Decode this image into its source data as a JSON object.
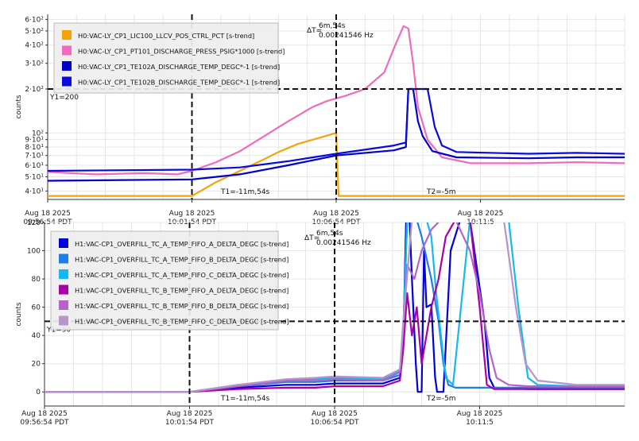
{
  "colors": {
    "grid": "#e6e6e6",
    "axis": "#333333",
    "cursor": "#111111",
    "legend_bg": "#eeeeee",
    "legend_border": "#bbbbbb"
  },
  "chart_data": [
    {
      "type": "line",
      "ylabel": "counts",
      "yscale": "log",
      "ylim": [
        35,
        650
      ],
      "xlim": [
        0,
        1200
      ],
      "y_ticks": [
        {
          "value": 40,
          "label": "4·10¹"
        },
        {
          "value": 50,
          "label": "5·10¹"
        },
        {
          "value": 60,
          "label": "6·10¹"
        },
        {
          "value": 70,
          "label": "7·10¹"
        },
        {
          "value": 80,
          "label": "8·10¹"
        },
        {
          "value": 90,
          "label": "9·10¹"
        },
        {
          "value": 100,
          "label": "10²"
        },
        {
          "value": 200,
          "label": "2·10²"
        },
        {
          "value": 300,
          "label": "3·10²"
        },
        {
          "value": 400,
          "label": "4·10²"
        },
        {
          "value": 500,
          "label": "5·10²"
        },
        {
          "value": 600,
          "label": "6·10²"
        }
      ],
      "x_ticks": [
        {
          "value": 0,
          "line1": "Aug 18 2025",
          "line2": "09:56:54 PDT"
        },
        {
          "value": 300,
          "line1": "Aug 18 2025",
          "line2": "10:01:54 PDT"
        },
        {
          "value": 600,
          "line1": "Aug 18 2025",
          "line2": "10:06:54 PDT"
        },
        {
          "value": 900,
          "line1": "Aug 18 2025",
          "line2": "10:11:5"
        }
      ],
      "cursors": {
        "t1": {
          "x": 300,
          "label": "T1=-11m,54s"
        },
        "t2": {
          "x": 600,
          "label": "T2=-5m"
        },
        "y1": {
          "y": 200,
          "label": "Y1=200"
        },
        "delta_line1": "ΔT=",
        "delta_line2": "6m,54s",
        "delta_line3": "0.00241546 Hz"
      },
      "series": [
        {
          "name": "H0:VAC-LY_CP1_LIC100_LLCV_POS_CTRL_PCT [s-trend]",
          "color": "#f5a30a",
          "points": [
            [
              0,
              37
            ],
            [
              300,
              37
            ],
            [
              350,
              46
            ],
            [
              400,
              55
            ],
            [
              450,
              66
            ],
            [
              480,
              74
            ],
            [
              520,
              84
            ],
            [
              600,
              100
            ],
            [
              605,
              37
            ],
            [
              1200,
              37
            ]
          ]
        },
        {
          "name": "H0:VAC-LY_CP1_PT101_DISCHARGE_PRESS_PSIG*1000 [s-trend]",
          "color": "#f06bbd",
          "points": [
            [
              0,
              54
            ],
            [
              100,
              52
            ],
            [
              200,
              53
            ],
            [
              270,
              52
            ],
            [
              300,
              55
            ],
            [
              350,
              63
            ],
            [
              400,
              75
            ],
            [
              450,
              95
            ],
            [
              500,
              120
            ],
            [
              550,
              150
            ],
            [
              580,
              165
            ],
            [
              620,
              180
            ],
            [
              660,
              200
            ],
            [
              700,
              260
            ],
            [
              720,
              380
            ],
            [
              740,
              540
            ],
            [
              750,
              520
            ],
            [
              760,
              300
            ],
            [
              770,
              150
            ],
            [
              790,
              90
            ],
            [
              820,
              68
            ],
            [
              880,
              62
            ],
            [
              1000,
              62
            ],
            [
              1100,
              63
            ],
            [
              1200,
              62
            ]
          ]
        },
        {
          "name": "H0:VAC-LY_CP1_TE102A_DISCHARGE_TEMP_DEGC*-1 [s-trend]",
          "color": "#0000cc",
          "points": [
            [
              0,
              47
            ],
            [
              300,
              48
            ],
            [
              400,
              52
            ],
            [
              500,
              60
            ],
            [
              600,
              70
            ],
            [
              720,
              76
            ],
            [
              745,
              80
            ],
            [
              750,
              200
            ],
            [
              760,
              200
            ],
            [
              770,
              120
            ],
            [
              780,
              95
            ],
            [
              800,
              75
            ],
            [
              850,
              68
            ],
            [
              1000,
              67
            ],
            [
              1100,
              68
            ],
            [
              1200,
              68
            ]
          ]
        },
        {
          "name": "H0:VAC-LY_CP1_TE102B_DISCHARGE_TEMP_DEGC*-1 [s-trend]",
          "color": "#0a0adc",
          "points": [
            [
              0,
              55
            ],
            [
              300,
              56
            ],
            [
              400,
              58
            ],
            [
              500,
              64
            ],
            [
              600,
              72
            ],
            [
              720,
              82
            ],
            [
              745,
              86
            ],
            [
              750,
              200
            ],
            [
              790,
              200
            ],
            [
              805,
              110
            ],
            [
              820,
              82
            ],
            [
              850,
              74
            ],
            [
              1000,
              72
            ],
            [
              1100,
              73
            ],
            [
              1200,
              72
            ]
          ]
        }
      ]
    },
    {
      "type": "line",
      "ylabel": "counts",
      "yscale": "linear",
      "ylim": [
        -10,
        120
      ],
      "xlim": [
        0,
        1200
      ],
      "y_ticks": [
        {
          "value": 0,
          "label": "0"
        },
        {
          "value": 20,
          "label": "20"
        },
        {
          "value": 40,
          "label": "40"
        },
        {
          "value": 60,
          "label": "60"
        },
        {
          "value": 80,
          "label": "80"
        },
        {
          "value": 100,
          "label": "100"
        },
        {
          "value": 120,
          "label": "120"
        }
      ],
      "x_ticks": [
        {
          "value": 0,
          "line1": "Aug 18 2025",
          "line2": "09:56:54 PDT"
        },
        {
          "value": 300,
          "line1": "Aug 18 2025",
          "line2": "10:01:54 PDT"
        },
        {
          "value": 600,
          "line1": "Aug 18 2025",
          "line2": "10:06:54 PDT"
        },
        {
          "value": 900,
          "line1": "Aug 18 2025",
          "line2": "10:11:5"
        }
      ],
      "cursors": {
        "t1": {
          "x": 300,
          "label": "T1=-11m,54s"
        },
        "t2": {
          "x": 600,
          "label": "T2=-5m"
        },
        "y1": {
          "y": 50,
          "label": "Y1=50"
        },
        "delta_line1": "ΔT=",
        "delta_line2": "6m,54s",
        "delta_line3": "0.00241546 Hz"
      },
      "series": [
        {
          "name": "H1:VAC-CP1_OVERFILL_TC_A_TEMP_FIFO_A_DELTA_DEGC [s-trend]",
          "color": "#0000dd",
          "points": [
            [
              0,
              0
            ],
            [
              300,
              0
            ],
            [
              400,
              3
            ],
            [
              500,
              5
            ],
            [
              560,
              5
            ],
            [
              600,
              6
            ],
            [
              700,
              6
            ],
            [
              735,
              10
            ],
            [
              742,
              35
            ],
            [
              748,
              122
            ],
            [
              755,
              122
            ],
            [
              760,
              80
            ],
            [
              768,
              20
            ],
            [
              772,
              0
            ],
            [
              780,
              0
            ],
            [
              785,
              100
            ],
            [
              790,
              60
            ],
            [
              800,
              62
            ],
            [
              808,
              10
            ],
            [
              812,
              0
            ],
            [
              825,
              0
            ],
            [
              840,
              100
            ],
            [
              860,
              122
            ],
            [
              880,
              122
            ],
            [
              910,
              50
            ],
            [
              920,
              10
            ],
            [
              930,
              3
            ],
            [
              1000,
              2
            ],
            [
              1100,
              2
            ],
            [
              1200,
              2
            ]
          ]
        },
        {
          "name": "H1:VAC-CP1_OVERFILL_TC_A_TEMP_FIFO_B_DELTA_DEGC [s-trend]",
          "color": "#1e7ee6",
          "points": [
            [
              0,
              0
            ],
            [
              300,
              0
            ],
            [
              400,
              4
            ],
            [
              500,
              7
            ],
            [
              560,
              7
            ],
            [
              600,
              8
            ],
            [
              700,
              8
            ],
            [
              735,
              12
            ],
            [
              742,
              40
            ],
            [
              750,
              122
            ],
            [
              770,
              122
            ],
            [
              780,
              110
            ],
            [
              800,
              80
            ],
            [
              815,
              50
            ],
            [
              825,
              20
            ],
            [
              835,
              5
            ],
            [
              850,
              3
            ],
            [
              1000,
              3
            ],
            [
              1200,
              3
            ]
          ]
        },
        {
          "name": "H1:VAC-CP1_OVERFILL_TC_A_TEMP_FIFO_C_DELTA_DEGC [s-trend]",
          "color": "#14b9f0",
          "points": [
            [
              0,
              0
            ],
            [
              300,
              0
            ],
            [
              400,
              5
            ],
            [
              500,
              8
            ],
            [
              560,
              9
            ],
            [
              600,
              10
            ],
            [
              700,
              9
            ],
            [
              735,
              15
            ],
            [
              742,
              45
            ],
            [
              750,
              122
            ],
            [
              790,
              122
            ],
            [
              800,
              110
            ],
            [
              810,
              70
            ],
            [
              820,
              40
            ],
            [
              830,
              10
            ],
            [
              845,
              5
            ],
            [
              880,
              122
            ],
            [
              960,
              122
            ],
            [
              980,
              60
            ],
            [
              1000,
              10
            ],
            [
              1020,
              5
            ],
            [
              1100,
              4
            ],
            [
              1200,
              4
            ]
          ]
        },
        {
          "name": "H1:VAC-CP1_OVERFILL_TC_B_TEMP_FIFO_A_DELTA_DEGC [s-trend]",
          "color": "#aa00aa",
          "points": [
            [
              0,
              0
            ],
            [
              300,
              0
            ],
            [
              400,
              2
            ],
            [
              500,
              3
            ],
            [
              560,
              3
            ],
            [
              600,
              4
            ],
            [
              700,
              4
            ],
            [
              735,
              8
            ],
            [
              742,
              30
            ],
            [
              750,
              70
            ],
            [
              760,
              40
            ],
            [
              770,
              60
            ],
            [
              780,
              20
            ],
            [
              790,
              40
            ],
            [
              800,
              60
            ],
            [
              815,
              80
            ],
            [
              830,
              110
            ],
            [
              850,
              122
            ],
            [
              880,
              122
            ],
            [
              900,
              60
            ],
            [
              915,
              5
            ],
            [
              930,
              2
            ],
            [
              1000,
              2
            ],
            [
              1200,
              2
            ]
          ]
        },
        {
          "name": "H1:VAC-CP1_OVERFILL_TC_B_TEMP_FIFO_B_DELTA_DEGC [s-trend]",
          "color": "#b464c8",
          "points": [
            [
              0,
              0
            ],
            [
              300,
              0
            ],
            [
              400,
              4
            ],
            [
              500,
              8
            ],
            [
              560,
              8
            ],
            [
              600,
              9
            ],
            [
              700,
              8
            ],
            [
              735,
              14
            ],
            [
              742,
              45
            ],
            [
              750,
              90
            ],
            [
              765,
              80
            ],
            [
              780,
              100
            ],
            [
              800,
              115
            ],
            [
              820,
              122
            ],
            [
              850,
              122
            ],
            [
              880,
              100
            ],
            [
              900,
              70
            ],
            [
              920,
              30
            ],
            [
              935,
              10
            ],
            [
              960,
              5
            ],
            [
              1000,
              4
            ],
            [
              1200,
              4
            ]
          ]
        },
        {
          "name": "H1:VAC-CP1_OVERFILL_TC_B_TEMP_FIFO_C_DELTA_DEGC [s-trend]",
          "color": "#b496c8",
          "points": [
            [
              0,
              0
            ],
            [
              300,
              0
            ],
            [
              400,
              5
            ],
            [
              500,
              9
            ],
            [
              560,
              10
            ],
            [
              600,
              11
            ],
            [
              700,
              10
            ],
            [
              735,
              16
            ],
            [
              742,
              50
            ],
            [
              760,
              122
            ],
            [
              870,
              122
            ],
            [
              900,
              122
            ],
            [
              950,
              122
            ],
            [
              975,
              60
            ],
            [
              995,
              20
            ],
            [
              1020,
              8
            ],
            [
              1100,
              5
            ],
            [
              1200,
              5
            ]
          ]
        }
      ]
    }
  ]
}
